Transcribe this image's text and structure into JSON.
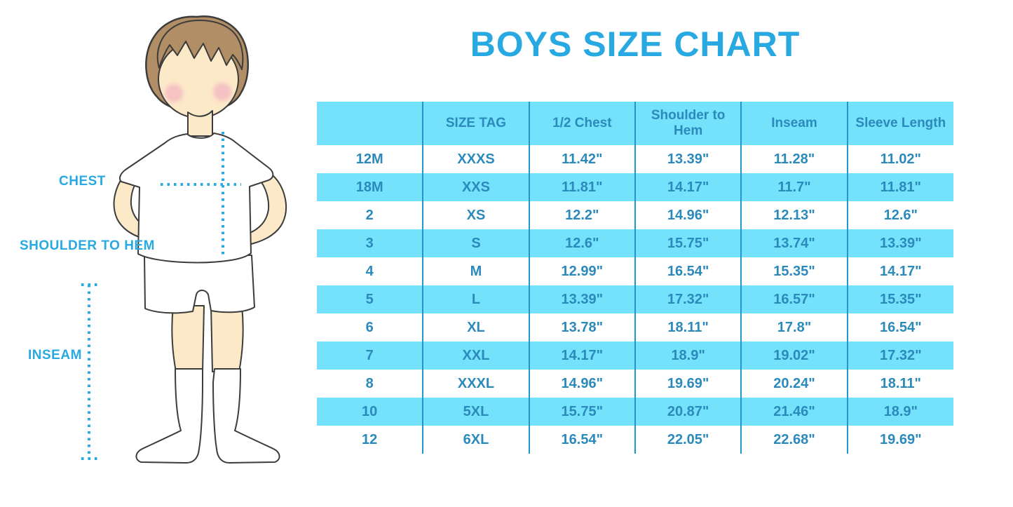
{
  "title": "BOYS SIZE CHART",
  "figure": {
    "labels": {
      "chest": "CHEST",
      "shoulder_to_hem": "SHOULDER TO HEM",
      "inseam": "INSEAM"
    }
  },
  "colors": {
    "accent": "#29A9E1",
    "table_text": "#2B8ABB",
    "cell_bg": "#74E2FA",
    "column_line": "#2196C9",
    "dotted_line": "#29ABE2",
    "hair": "#B18E66",
    "skin": "#FCE9C8",
    "cheek": "#F2A9C0",
    "outline": "#3C3C3C"
  },
  "chart_data": {
    "type": "table",
    "title": "BOYS SIZE CHART",
    "columns": [
      "",
      "SIZE TAG",
      "1/2 Chest",
      "Shoulder to Hem",
      "Inseam",
      "Sleeve Length"
    ],
    "rows": [
      [
        "12M",
        "XXXS",
        "11.42\"",
        "13.39\"",
        "11.28\"",
        "11.02\""
      ],
      [
        "18M",
        "XXS",
        "11.81\"",
        "14.17\"",
        "11.7\"",
        "11.81\""
      ],
      [
        "2",
        "XS",
        "12.2\"",
        "14.96\"",
        "12.13\"",
        "12.6\""
      ],
      [
        "3",
        "S",
        "12.6\"",
        "15.75\"",
        "13.74\"",
        "13.39\""
      ],
      [
        "4",
        "M",
        "12.99\"",
        "16.54\"",
        "15.35\"",
        "14.17\""
      ],
      [
        "5",
        "L",
        "13.39\"",
        "17.32\"",
        "16.57\"",
        "15.35\""
      ],
      [
        "6",
        "XL",
        "13.78\"",
        "18.11\"",
        "17.8\"",
        "16.54\""
      ],
      [
        "7",
        "XXL",
        "14.17\"",
        "18.9\"",
        "19.02\"",
        "17.32\""
      ],
      [
        "8",
        "XXXL",
        "14.96\"",
        "19.69\"",
        "20.24\"",
        "18.11\""
      ],
      [
        "10",
        "5XL",
        "15.75\"",
        "20.87\"",
        "21.46\"",
        "18.9\""
      ],
      [
        "12",
        "6XL",
        "16.54\"",
        "22.05\"",
        "22.68\"",
        "19.69\""
      ]
    ]
  }
}
